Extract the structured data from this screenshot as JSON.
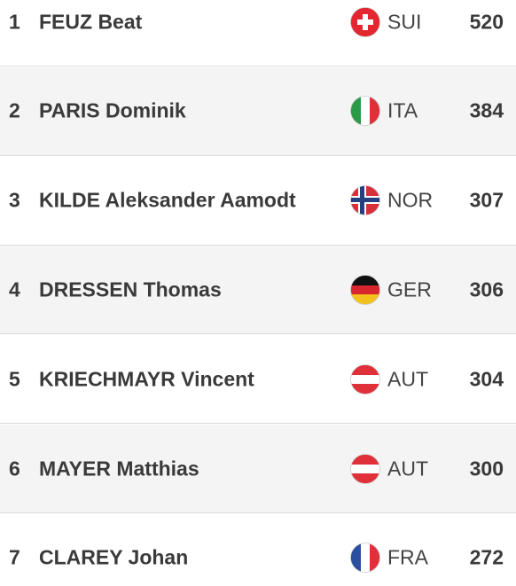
{
  "standings": {
    "rows": [
      {
        "rank": 1,
        "name": "FEUZ Beat",
        "country": "SUI",
        "points": 520
      },
      {
        "rank": 2,
        "name": "PARIS Dominik",
        "country": "ITA",
        "points": 384
      },
      {
        "rank": 3,
        "name": "KILDE Aleksander Aamodt",
        "country": "NOR",
        "points": 307
      },
      {
        "rank": 4,
        "name": "DRESSEN Thomas",
        "country": "GER",
        "points": 306
      },
      {
        "rank": 5,
        "name": "KRIECHMAYR Vincent",
        "country": "AUT",
        "points": 304
      },
      {
        "rank": 6,
        "name": "MAYER Matthias",
        "country": "AUT",
        "points": 300
      },
      {
        "rank": 7,
        "name": "CLAREY Johan",
        "country": "FRA",
        "points": 272
      }
    ]
  }
}
